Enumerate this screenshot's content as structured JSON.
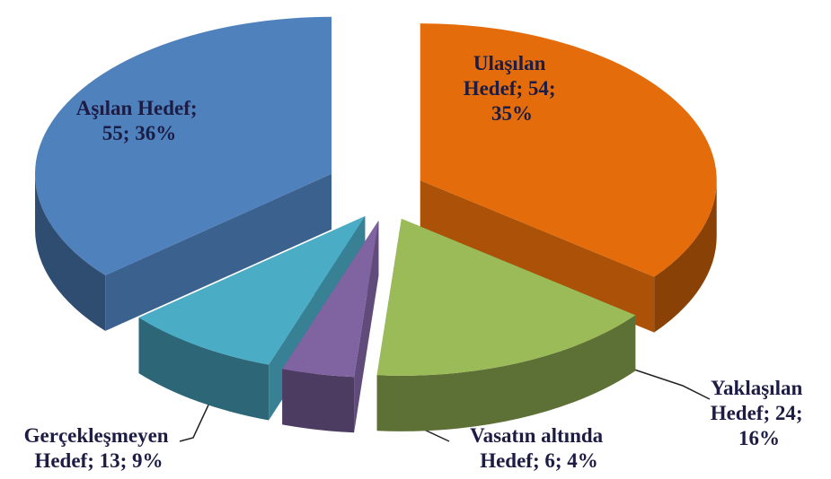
{
  "chart_data": {
    "type": "pie3d",
    "values": [
      54,
      24,
      6,
      13,
      55
    ],
    "value_labels": [
      "Ulaşılan Hedef; 54; 35%",
      "Yaklaşılan Hedef; 24; 16%",
      "Vasatın altında Hedef; 6; 4%",
      "Gerçekleşmeyen Hedef; 13; 9%",
      "Aşılan Hedef; 55; 36%"
    ],
    "colors": [
      "#e46c0a",
      "#9bbb59",
      "#8064a2",
      "#4bacc6",
      "#4f81bd"
    ]
  }
}
